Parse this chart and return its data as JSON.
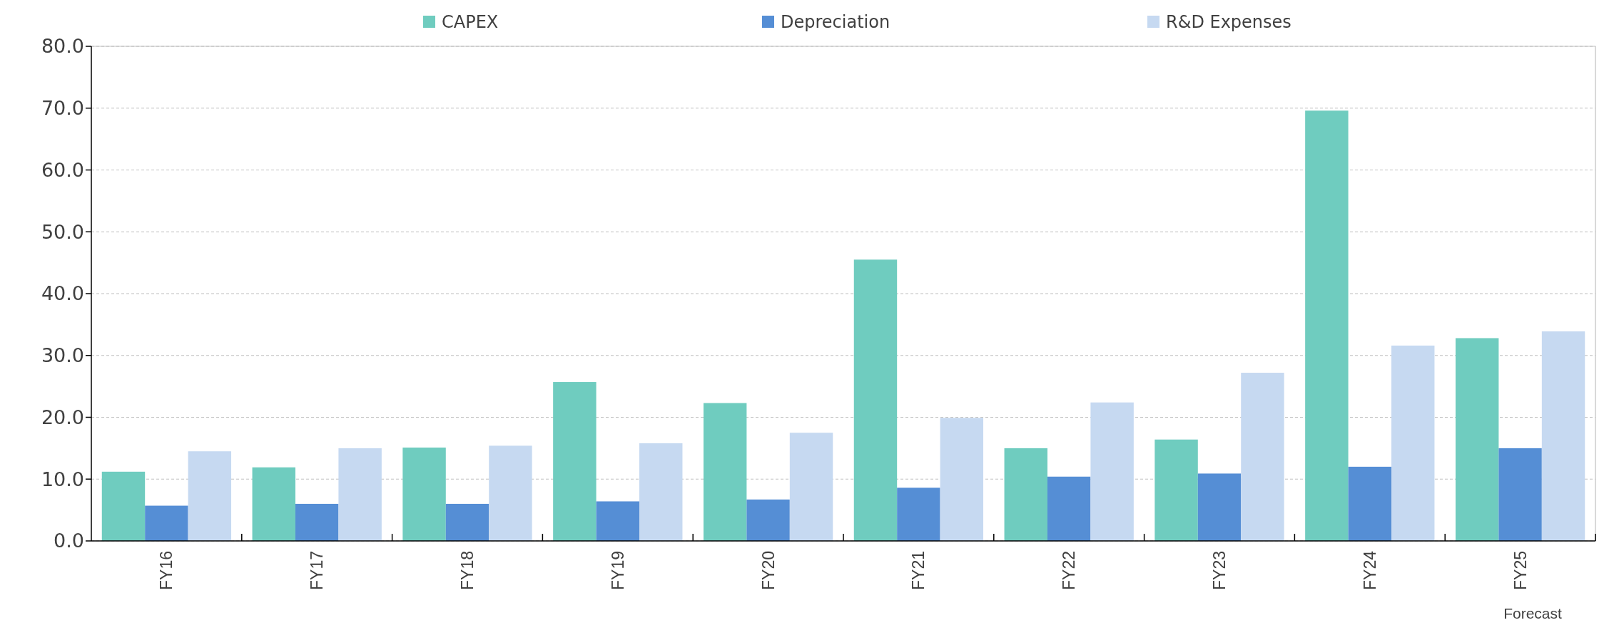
{
  "chart_data": {
    "type": "bar",
    "categories": [
      "FY16",
      "FY17",
      "FY18",
      "FY19",
      "FY20",
      "FY21",
      "FY22",
      "FY23",
      "FY24",
      "FY25"
    ],
    "series": [
      {
        "name": "CAPEX",
        "color": "#6fccbf",
        "values": [
          11.2,
          11.9,
          15.1,
          25.7,
          22.3,
          45.5,
          15.0,
          16.4,
          69.6,
          32.8
        ]
      },
      {
        "name": "Depreciation",
        "color": "#558ed5",
        "values": [
          5.7,
          6.0,
          6.0,
          6.4,
          6.7,
          8.6,
          10.4,
          10.9,
          12.0,
          15.0
        ]
      },
      {
        "name": "R&D Expenses",
        "color": "#c6d9f1",
        "values": [
          14.5,
          15.0,
          15.4,
          15.8,
          17.5,
          19.9,
          22.4,
          27.2,
          31.6,
          33.9
        ]
      }
    ],
    "ylim": [
      0,
      80
    ],
    "yticks": [
      {
        "value": 0,
        "label": "0.0"
      },
      {
        "value": 10,
        "label": "10.0"
      },
      {
        "value": 20,
        "label": "20.0"
      },
      {
        "value": 30,
        "label": "30.0"
      },
      {
        "value": 40,
        "label": "40.0"
      },
      {
        "value": 50,
        "label": "50.0"
      },
      {
        "value": 60,
        "label": "60.0"
      },
      {
        "value": 70,
        "label": "70.0"
      },
      {
        "value": 80,
        "label": "80.0"
      }
    ],
    "grid": "y",
    "legend": "top",
    "annotations": [
      "Forecast"
    ]
  }
}
